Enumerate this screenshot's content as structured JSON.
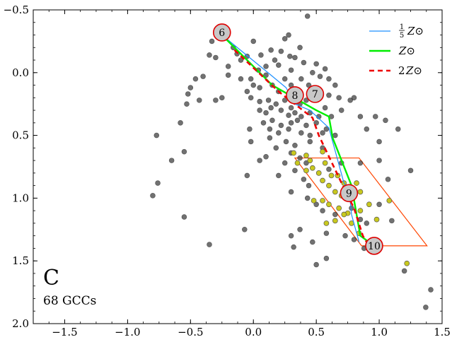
{
  "panel": {
    "letter": "C",
    "subtitle": "68 GCCs"
  },
  "chart_data": {
    "type": "scatter",
    "xlim": [
      -1.75,
      1.5
    ],
    "ylim": [
      2.0,
      -0.5
    ],
    "y_inverted": true,
    "grid": false,
    "legend_position": "top-right",
    "xticks": [
      "−1.5",
      "−1.0",
      "−0.5",
      "0.0",
      "0.5",
      "1.0",
      "1.5"
    ],
    "xtick_values": [
      -1.5,
      -1.0,
      -0.5,
      0.0,
      0.5,
      1.0,
      1.5
    ],
    "yticks": [
      "−0.5",
      "0.0",
      "0.5",
      "1.0",
      "1.5",
      "2.0"
    ],
    "ytick_values": [
      -0.5,
      0.0,
      0.5,
      1.0,
      1.5,
      2.0
    ],
    "colors": {
      "gray_points": "#3a3a3a",
      "yellow_points": "#c8c81e",
      "box": "#ff4500",
      "low_z": "#1e90ff",
      "solar_z": "#00ee00",
      "high_z": "#ee0000",
      "marker_fill": "#c8c8c8",
      "marker_edge": "#dd0000"
    },
    "gray_points": [
      [
        0.43,
        -0.45
      ],
      [
        0.25,
        -0.27
      ],
      [
        0.0,
        -0.25
      ],
      [
        0.28,
        -0.3
      ],
      [
        0.37,
        -0.2
      ],
      [
        0.14,
        -0.18
      ],
      [
        0.22,
        -0.17
      ],
      [
        0.29,
        -0.13
      ],
      [
        0.06,
        -0.14
      ],
      [
        -0.33,
        -0.25
      ],
      [
        -0.35,
        -0.14
      ],
      [
        -0.1,
        -0.1
      ],
      [
        -0.05,
        -0.13
      ],
      [
        -0.16,
        -0.2
      ],
      [
        -0.3,
        -0.12
      ],
      [
        -0.2,
        -0.05
      ],
      [
        -0.13,
        -0.15
      ],
      [
        0.17,
        -0.1
      ],
      [
        0.33,
        -0.12
      ],
      [
        0.4,
        -0.08
      ],
      [
        0.5,
        -0.07
      ],
      [
        0.47,
        0.0
      ],
      [
        0.53,
        0.03
      ],
      [
        0.57,
        -0.03
      ],
      [
        0.3,
        -0.02
      ],
      [
        0.2,
        -0.06
      ],
      [
        0.1,
        -0.05
      ],
      [
        0.04,
        -0.02
      ],
      [
        -0.02,
        0.05
      ],
      [
        0.1,
        0.02
      ],
      [
        0.25,
        0.05
      ],
      [
        0.38,
        0.05
      ],
      [
        0.44,
        0.1
      ],
      [
        0.6,
        0.05
      ],
      [
        0.65,
        0.1
      ],
      [
        -0.46,
        0.05
      ],
      [
        -0.5,
        0.12
      ],
      [
        -0.4,
        0.03
      ],
      [
        -0.2,
        0.02
      ],
      [
        -0.1,
        0.05
      ],
      [
        0.0,
        0.1
      ],
      [
        0.05,
        0.12
      ],
      [
        -0.05,
        0.15
      ],
      [
        0.15,
        0.1
      ],
      [
        0.2,
        0.15
      ],
      [
        0.3,
        0.1
      ],
      [
        0.36,
        0.14
      ],
      [
        0.5,
        0.15
      ],
      [
        0.52,
        0.2
      ],
      [
        0.6,
        0.18
      ],
      [
        0.68,
        0.2
      ],
      [
        0.8,
        0.2
      ],
      [
        -0.25,
        0.2
      ],
      [
        -0.3,
        0.22
      ],
      [
        -0.52,
        0.17
      ],
      [
        -0.53,
        0.25
      ],
      [
        -0.43,
        0.22
      ],
      [
        -0.02,
        0.2
      ],
      [
        0.05,
        0.23
      ],
      [
        0.12,
        0.22
      ],
      [
        0.18,
        0.25
      ],
      [
        0.25,
        0.22
      ],
      [
        0.3,
        0.28
      ],
      [
        0.37,
        0.25
      ],
      [
        0.42,
        0.22
      ],
      [
        0.57,
        0.28
      ],
      [
        0.7,
        0.3
      ],
      [
        0.77,
        0.22
      ],
      [
        0.05,
        0.3
      ],
      [
        0.1,
        0.32
      ],
      [
        0.14,
        0.28
      ],
      [
        0.22,
        0.3
      ],
      [
        0.28,
        0.34
      ],
      [
        0.33,
        0.32
      ],
      [
        0.38,
        0.35
      ],
      [
        0.45,
        0.32
      ],
      [
        0.52,
        0.35
      ],
      [
        0.62,
        0.35
      ],
      [
        0.85,
        0.35
      ],
      [
        0.97,
        0.35
      ],
      [
        0.08,
        0.4
      ],
      [
        0.15,
        0.38
      ],
      [
        0.22,
        0.42
      ],
      [
        0.3,
        0.4
      ],
      [
        0.35,
        0.38
      ],
      [
        0.42,
        0.42
      ],
      [
        0.5,
        0.4
      ],
      [
        0.58,
        0.45
      ],
      [
        -0.03,
        0.45
      ],
      [
        0.13,
        0.45
      ],
      [
        0.2,
        0.48
      ],
      [
        0.28,
        0.45
      ],
      [
        0.38,
        0.48
      ],
      [
        0.45,
        0.5
      ],
      [
        0.55,
        0.48
      ],
      [
        0.65,
        0.5
      ],
      [
        -0.02,
        0.55
      ],
      [
        0.13,
        0.52
      ],
      [
        0.26,
        0.55
      ],
      [
        0.33,
        0.58
      ],
      [
        0.45,
        0.55
      ],
      [
        0.55,
        0.6
      ],
      [
        0.9,
        0.45
      ],
      [
        1.0,
        0.55
      ],
      [
        1.15,
        0.45
      ],
      [
        1.05,
        0.38
      ],
      [
        -0.58,
        0.4
      ],
      [
        -0.77,
        0.5
      ],
      [
        -0.55,
        0.63
      ],
      [
        -0.65,
        0.7
      ],
      [
        -0.76,
        0.88
      ],
      [
        -0.8,
        0.98
      ],
      [
        -0.55,
        1.15
      ],
      [
        0.1,
        0.67
      ],
      [
        0.18,
        0.6
      ],
      [
        0.3,
        0.64
      ],
      [
        0.37,
        0.68
      ],
      [
        0.42,
        0.72
      ],
      [
        0.2,
        0.82
      ],
      [
        0.05,
        0.7
      ],
      [
        0.25,
        0.72
      ],
      [
        0.33,
        0.78
      ],
      [
        0.4,
        0.85
      ],
      [
        0.44,
        0.9
      ],
      [
        0.6,
        0.77
      ],
      [
        0.7,
        0.72
      ],
      [
        0.85,
        0.72
      ],
      [
        1.0,
        0.7
      ],
      [
        -0.05,
        0.82
      ],
      [
        0.3,
        0.95
      ],
      [
        0.43,
        1.0
      ],
      [
        0.5,
        1.05
      ],
      [
        0.55,
        1.1
      ],
      [
        0.65,
        1.13
      ],
      [
        0.78,
        1.08
      ],
      [
        0.85,
        1.17
      ],
      [
        0.9,
        1.2
      ],
      [
        1.0,
        1.05
      ],
      [
        1.07,
        0.85
      ],
      [
        1.1,
        1.18
      ],
      [
        1.25,
        0.78
      ],
      [
        0.37,
        1.25
      ],
      [
        0.47,
        1.35
      ],
      [
        0.58,
        1.28
      ],
      [
        0.73,
        1.3
      ],
      [
        0.8,
        1.33
      ],
      [
        0.88,
        1.4
      ],
      [
        0.3,
        1.3
      ],
      [
        0.32,
        1.39
      ],
      [
        -0.07,
        1.25
      ],
      [
        -0.35,
        1.37
      ],
      [
        0.5,
        1.53
      ],
      [
        0.58,
        1.48
      ],
      [
        1.2,
        1.58
      ],
      [
        1.41,
        1.73
      ],
      [
        1.37,
        1.87
      ]
    ],
    "yellow_points": [
      [
        0.32,
        0.64
      ],
      [
        0.42,
        0.66
      ],
      [
        0.45,
        0.7
      ],
      [
        0.55,
        0.63
      ],
      [
        0.57,
        0.72
      ],
      [
        0.35,
        0.72
      ],
      [
        0.47,
        0.76
      ],
      [
        0.52,
        0.8
      ],
      [
        0.62,
        0.82
      ],
      [
        0.67,
        0.82
      ],
      [
        0.42,
        0.78
      ],
      [
        0.55,
        0.86
      ],
      [
        0.6,
        0.9
      ],
      [
        0.72,
        0.88
      ],
      [
        0.82,
        0.88
      ],
      [
        0.65,
        0.95
      ],
      [
        0.7,
        0.98
      ],
      [
        0.85,
        0.95
      ],
      [
        0.55,
        1.02
      ],
      [
        0.6,
        1.05
      ],
      [
        0.68,
        1.08
      ],
      [
        0.75,
        1.12
      ],
      [
        0.85,
        1.1
      ],
      [
        0.92,
        1.05
      ],
      [
        0.98,
        1.17
      ],
      [
        1.08,
        1.02
      ],
      [
        0.78,
        1.2
      ],
      [
        0.65,
        1.18
      ],
      [
        0.58,
        1.2
      ],
      [
        0.84,
        1.28
      ],
      [
        0.72,
        1.13
      ],
      [
        0.48,
        1.02
      ],
      [
        1.22,
        1.52
      ]
    ],
    "box_outline": [
      [
        0.33,
        0.68
      ],
      [
        0.84,
        0.68
      ],
      [
        1.38,
        1.38
      ],
      [
        0.86,
        1.38
      ]
    ],
    "series": [
      {
        "name": "1/5 Z⊙",
        "points": [
          [
            -0.25,
            -0.3
          ],
          [
            0.14,
            0.02
          ],
          [
            0.26,
            0.12
          ],
          [
            0.33,
            0.25
          ],
          [
            0.45,
            0.3
          ],
          [
            0.6,
            0.44
          ],
          [
            0.72,
            0.88
          ],
          [
            0.76,
            0.93
          ],
          [
            0.78,
            1.13
          ],
          [
            0.84,
            1.35
          ]
        ]
      },
      {
        "name": "Z⊙",
        "points": [
          [
            -0.27,
            -0.32
          ],
          [
            0.15,
            0.1
          ],
          [
            0.5,
            0.3
          ],
          [
            0.6,
            0.35
          ],
          [
            0.63,
            0.52
          ],
          [
            0.78,
            0.9
          ],
          [
            0.85,
            1.3
          ],
          [
            0.96,
            1.38
          ]
        ]
      },
      {
        "name": "2Z⊙",
        "points": [
          [
            -0.15,
            -0.18
          ],
          [
            0.2,
            0.15
          ],
          [
            0.47,
            0.36
          ],
          [
            0.52,
            0.5
          ],
          [
            0.72,
            0.92
          ],
          [
            0.8,
            1.08
          ],
          [
            0.87,
            1.3
          ],
          [
            0.9,
            1.35
          ]
        ]
      }
    ],
    "age_markers": [
      {
        "label": "6",
        "x": -0.25,
        "y": -0.32
      },
      {
        "label": "8",
        "x": 0.33,
        "y": 0.18
      },
      {
        "label": "7",
        "x": 0.49,
        "y": 0.17
      },
      {
        "label": "9",
        "x": 0.76,
        "y": 0.96
      },
      {
        "label": "10",
        "x": 0.96,
        "y": 1.38
      }
    ],
    "legend": [
      {
        "key": "low_z",
        "label_prefix": "",
        "frac_num": "1",
        "frac_den": "5",
        "label": "Z⊙",
        "style": "solid-thin"
      },
      {
        "key": "solar_z",
        "label_prefix": "",
        "frac_num": "",
        "frac_den": "",
        "label": "Z⊙",
        "style": "solid-thick"
      },
      {
        "key": "high_z",
        "label_prefix": "2",
        "frac_num": "",
        "frac_den": "",
        "label": "Z⊙",
        "style": "dashed"
      }
    ]
  }
}
